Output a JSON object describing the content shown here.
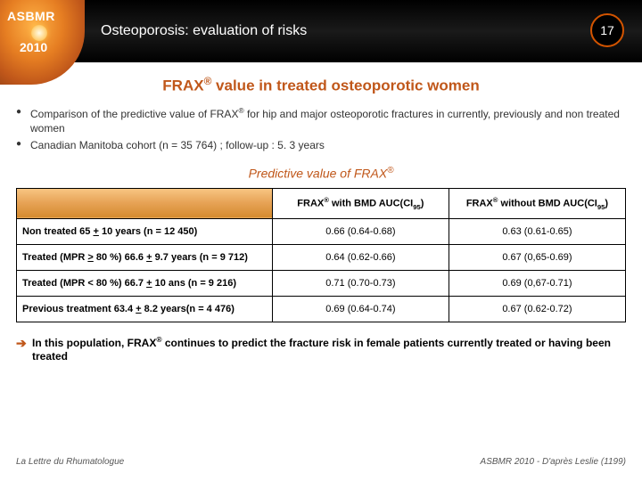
{
  "header": {
    "logo_org": "ASBMR",
    "logo_year": "2010",
    "title": "Osteoporosis: evaluation of risks",
    "page_number": "17"
  },
  "slide": {
    "title_html": "FRAX<sup>®</sup> value in  treated osteoporotic women",
    "bullets": [
      "Comparison of the predictive value of FRAX<sup>®</sup> for hip and major osteoporotic fractures  in  currently, previously and non treated  women",
      "Canadian Manitoba cohort (n = 35 764) ; follow-up : 5. 3 years"
    ],
    "table": {
      "caption_html": "Predictive value of FRAX<sup>®</sup>",
      "columns": [
        "",
        "FRAX<sup>®</sup> with BMD AUC(CI<sub>95</sub>)",
        "FRAX<sup>®</sup> without BMD AUC(CI<sub>95</sub>)"
      ],
      "rows": [
        {
          "label": "Non treated 65 <span class='under'>+</span> 10 years (n = 12 450)",
          "v1": "0.66 (0.64-0.68)",
          "v2": "0.63 (0.61-0.65)"
        },
        {
          "label": "Treated (MPR <span class='under'>></span> 80 %) 66.6 <span class='under'>+</span> 9.7 years (n = 9 712)",
          "v1": "0.64 (0.62-0.66)",
          "v2": "0.67 (0,65-0.69)"
        },
        {
          "label": "Treated (MPR < 80 %) 66.7 <span class='under'>+</span> 10 ans (n = 9 216)",
          "v1": "0.71 (0.70-0.73)",
          "v2": "0.69 (0,67-0.71)"
        },
        {
          "label": "Previous treatment  63.4 <span class='under'>+</span> 8.2 years(n = 4 476)",
          "v1": "0.69 (0.64-0.74)",
          "v2": "0.67 (0.62-0.72)"
        }
      ]
    },
    "conclusion_html": "In this population, FRAX<sup>®</sup> continues to predict the fracture risk in female patients currently treated or  having been treated"
  },
  "footer": {
    "left": "La Lettre du Rhumatologue",
    "right": "ASBMR 2010 - D'après Leslie (1199)"
  },
  "colors": {
    "accent": "#c0571a",
    "header_bg": "#000000",
    "badge_border": "#d35400",
    "th_grad_top": "#f8c684",
    "th_grad_bot": "#d48a2e"
  }
}
